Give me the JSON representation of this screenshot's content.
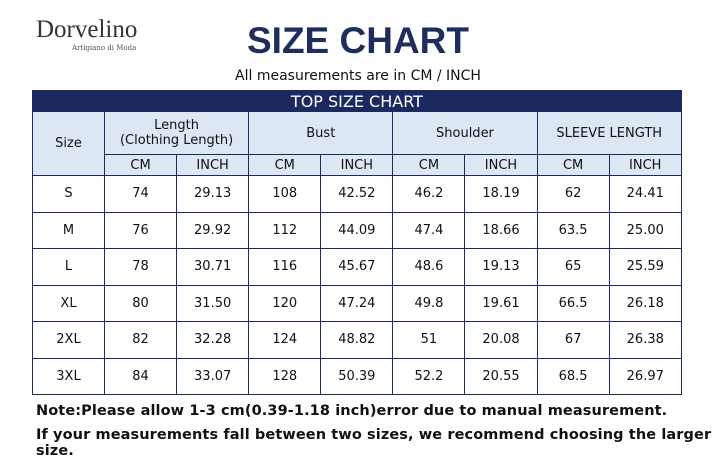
{
  "brand": {
    "name": "Dorvelino",
    "tagline": "Artigiano di Moda"
  },
  "header": {
    "title": "SIZE CHART",
    "subtitle": "All measurements are in CM / INCH"
  },
  "table": {
    "title": "TOP SIZE CHART",
    "headers": [
      "Size",
      "Length\n(Clothing Length)",
      "Bust",
      "Shoulder",
      "SLEEVE LENGTH"
    ],
    "subheaders": [
      "CM",
      "INCH",
      "CM",
      "INCH",
      "CM",
      "INCH",
      "CM",
      "INCH"
    ],
    "rows": [
      [
        "S",
        "74",
        "29.13",
        "108",
        "42.52",
        "46.2",
        "18.19",
        "62",
        "24.41"
      ],
      [
        "M",
        "76",
        "29.92",
        "112",
        "44.09",
        "47.4",
        "18.66",
        "63.5",
        "25.00"
      ],
      [
        "L",
        "78",
        "30.71",
        "116",
        "45.67",
        "48.6",
        "19.13",
        "65",
        "25.59"
      ],
      [
        "XL",
        "80",
        "31.50",
        "120",
        "47.24",
        "49.8",
        "19.61",
        "66.5",
        "26.18"
      ],
      [
        "2XL",
        "82",
        "32.28",
        "124",
        "48.82",
        "51",
        "20.08",
        "67",
        "26.38"
      ],
      [
        "3XL",
        "84",
        "33.07",
        "128",
        "50.39",
        "52.2",
        "20.55",
        "68.5",
        "26.97"
      ]
    ]
  },
  "notes": [
    "Note:Please allow 1-3 cm(0.39-1.18 inch)error due to manual measurement.",
    "If your measurements fall between two sizes, we recommend choosing the larger size."
  ]
}
